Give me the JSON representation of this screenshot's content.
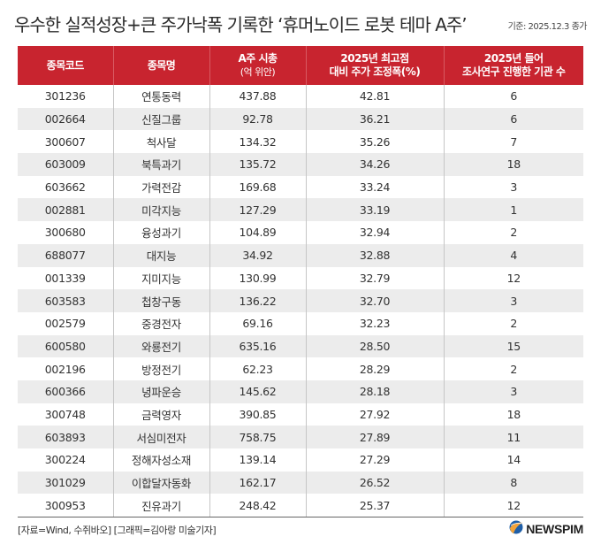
{
  "title": "우수한 실적성장+큰 주가낙폭 기록한 ‘휴머노이드 로봇 테마 A주’",
  "basis": "기준:  2025.12.3 종가",
  "colors": {
    "header_bg": "#c8242f",
    "stripe": "#ececec",
    "text": "#333333"
  },
  "columns": [
    {
      "line1": "종목코드",
      "line2": ""
    },
    {
      "line1": "종목명",
      "line2": ""
    },
    {
      "line1": "A주 시총",
      "line2": "(억 위안)"
    },
    {
      "line1": "2025년 최고점",
      "line2": "대비 주가 조정폭(%)"
    },
    {
      "line1": "2025년 들어",
      "line2": "조사연구 진행한 기관 수"
    }
  ],
  "rows": [
    [
      "301236",
      "연통동력",
      "437.88",
      "42.81",
      "6"
    ],
    [
      "002664",
      "신질그룹",
      "92.78",
      "36.21",
      "6"
    ],
    [
      "300607",
      "척사달",
      "134.32",
      "35.26",
      "7"
    ],
    [
      "603009",
      "북특과기",
      "135.72",
      "34.26",
      "18"
    ],
    [
      "603662",
      "가력전감",
      "169.68",
      "33.24",
      "3"
    ],
    [
      "002881",
      "미각지능",
      "127.29",
      "33.19",
      "1"
    ],
    [
      "300680",
      "융성과기",
      "104.89",
      "32.94",
      "2"
    ],
    [
      "688077",
      "대지능",
      "34.92",
      "32.88",
      "4"
    ],
    [
      "001339",
      "지미지능",
      "130.99",
      "32.79",
      "12"
    ],
    [
      "603583",
      "첩창구동",
      "136.22",
      "32.70",
      "3"
    ],
    [
      "002579",
      "중경전자",
      "69.16",
      "32.23",
      "2"
    ],
    [
      "600580",
      "와룡전기",
      "635.16",
      "28.50",
      "15"
    ],
    [
      "002196",
      "방정전기",
      "62.23",
      "28.29",
      "2"
    ],
    [
      "600366",
      "녕파운승",
      "145.62",
      "28.18",
      "3"
    ],
    [
      "300748",
      "금력영자",
      "390.85",
      "27.92",
      "18"
    ],
    [
      "603893",
      "서심미전자",
      "758.75",
      "27.89",
      "11"
    ],
    [
      "300224",
      "정해자성소재",
      "139.14",
      "27.29",
      "14"
    ],
    [
      "301029",
      "이합달자동화",
      "162.17",
      "26.52",
      "8"
    ],
    [
      "300953",
      "진유과기",
      "248.42",
      "25.37",
      "12"
    ]
  ],
  "source": "[자료=Wind, 수쥐바오] [그래픽=김아랑 미술기자]",
  "logo": {
    "text": "NEWSPIM",
    "icon": "newspim-logo-icon"
  },
  "chart_data": {
    "type": "table",
    "title": "우수한 실적성장+큰 주가낙폭 기록한 ‘휴머노이드 로봇 테마 A주’",
    "subtitle": "기준: 2025.12.3 종가",
    "headers": [
      "종목코드",
      "종목명",
      "A주 시총 (억 위안)",
      "2025년 최고점 대비 주가 조정폭(%)",
      "2025년 들어 조사연구 진행한 기관 수"
    ],
    "rows": [
      [
        "301236",
        "연통동력",
        437.88,
        42.81,
        6
      ],
      [
        "002664",
        "신질그룹",
        92.78,
        36.21,
        6
      ],
      [
        "300607",
        "척사달",
        134.32,
        35.26,
        7
      ],
      [
        "603009",
        "북특과기",
        135.72,
        34.26,
        18
      ],
      [
        "603662",
        "가력전감",
        169.68,
        33.24,
        3
      ],
      [
        "002881",
        "미각지능",
        127.29,
        33.19,
        1
      ],
      [
        "300680",
        "융성과기",
        104.89,
        32.94,
        2
      ],
      [
        "688077",
        "대지능",
        34.92,
        32.88,
        4
      ],
      [
        "001339",
        "지미지능",
        130.99,
        32.79,
        12
      ],
      [
        "603583",
        "첩창구동",
        136.22,
        32.7,
        3
      ],
      [
        "002579",
        "중경전자",
        69.16,
        32.23,
        2
      ],
      [
        "600580",
        "와룡전기",
        635.16,
        28.5,
        15
      ],
      [
        "002196",
        "방정전기",
        62.23,
        28.29,
        2
      ],
      [
        "600366",
        "녕파운승",
        145.62,
        28.18,
        3
      ],
      [
        "300748",
        "금력영자",
        390.85,
        27.92,
        18
      ],
      [
        "603893",
        "서심미전자",
        758.75,
        27.89,
        11
      ],
      [
        "300224",
        "정해자성소재",
        139.14,
        27.29,
        14
      ],
      [
        "301029",
        "이합달자동화",
        162.17,
        26.52,
        8
      ],
      [
        "300953",
        "진유과기",
        248.42,
        25.37,
        12
      ]
    ],
    "source": "[자료=Wind, 수쥐바오] [그래픽=김아랑 미술기자]"
  }
}
